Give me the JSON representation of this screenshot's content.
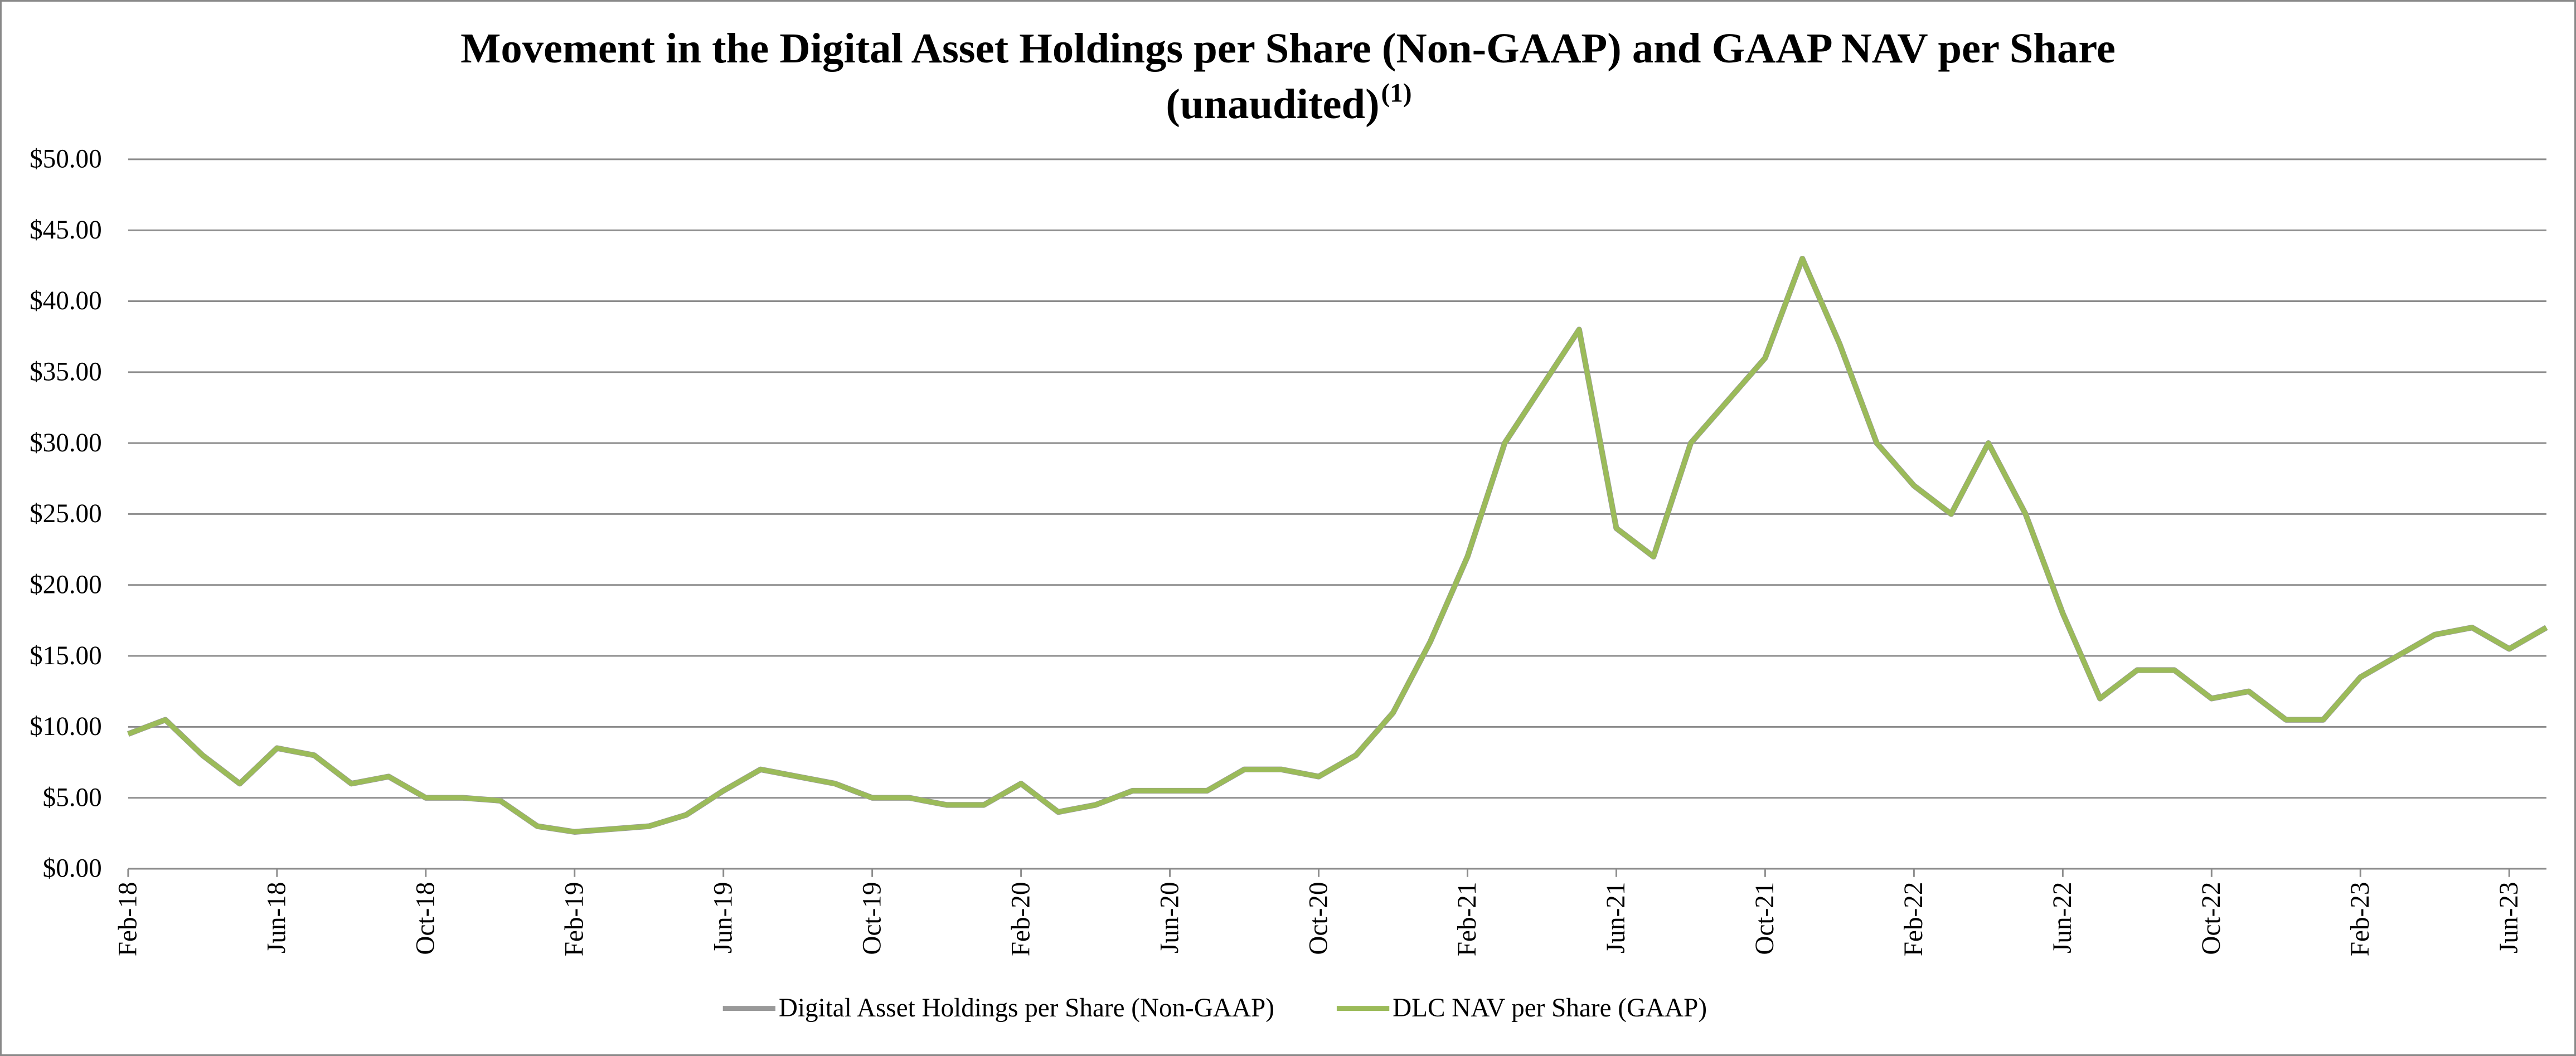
{
  "chart_data": {
    "type": "line",
    "title": [
      "Movement in the Digital Asset Holdings per Share (Non-GAAP) and GAAP NAV per Share",
      "(unaudited)"
    ],
    "title_note": "(1)",
    "categories": [
      "Feb-18",
      null,
      null,
      null,
      "Jun-18",
      null,
      null,
      null,
      "Oct-18",
      null,
      null,
      null,
      "Feb-19",
      null,
      null,
      null,
      "Jun-19",
      null,
      null,
      null,
      "Oct-19",
      null,
      null,
      null,
      "Feb-20",
      null,
      null,
      null,
      "Jun-20",
      null,
      null,
      null,
      "Oct-20",
      null,
      null,
      null,
      "Feb-21",
      null,
      null,
      null,
      "Jun-21",
      null,
      null,
      null,
      "Oct-21",
      null,
      null,
      null,
      "Feb-22",
      null,
      null,
      null,
      "Jun-22",
      null,
      null,
      null,
      "Oct-22",
      null,
      null,
      null,
      "Feb-23",
      null,
      null,
      null,
      "Jun-23",
      null
    ],
    "series": [
      {
        "name": "Digital Asset Holdings per Share (Non-GAAP)",
        "color": "#999999",
        "values": [
          9.5,
          10.5,
          8,
          6,
          8.5,
          8,
          6,
          6.5,
          5,
          5,
          4.8,
          3,
          2.6,
          2.8,
          3,
          3.8,
          5.5,
          7,
          6.5,
          6,
          5,
          5,
          4.5,
          4.5,
          6,
          4,
          4.5,
          5.5,
          5.5,
          5.5,
          7,
          7,
          6.5,
          8,
          11,
          16,
          22,
          30,
          34,
          38,
          24,
          22,
          30,
          33,
          36,
          43,
          37,
          30,
          27,
          25,
          30,
          25,
          18,
          12,
          14,
          14,
          12,
          12.5,
          10.5,
          10.5,
          13.5,
          15,
          16.5,
          17,
          15.5,
          17
        ]
      },
      {
        "name": "DLC NAV per Share (GAAP)",
        "color": "#9bbb59",
        "values": [
          9.5,
          10.5,
          8,
          6,
          8.5,
          8,
          6,
          6.5,
          5,
          5,
          4.8,
          3,
          2.6,
          2.8,
          3,
          3.8,
          5.5,
          7,
          6.5,
          6,
          5,
          5,
          4.5,
          4.5,
          6,
          4,
          4.5,
          5.5,
          5.5,
          5.5,
          7,
          7,
          6.5,
          8,
          11,
          16,
          22,
          30,
          34,
          38,
          24,
          22,
          30,
          33,
          36,
          43,
          37,
          30,
          27,
          25,
          30,
          25,
          18,
          12,
          14,
          14,
          12,
          12.5,
          10.5,
          10.5,
          13.5,
          15,
          16.5,
          17,
          15.5,
          17
        ]
      }
    ],
    "ylim": [
      0,
      50
    ],
    "yticks": [
      {
        "value": 0,
        "label": "$0.00"
      },
      {
        "value": 5,
        "label": "$5.00"
      },
      {
        "value": 10,
        "label": "$10.00"
      },
      {
        "value": 15,
        "label": "$15.00"
      },
      {
        "value": 20,
        "label": "$20.00"
      },
      {
        "value": 25,
        "label": "$25.00"
      },
      {
        "value": 30,
        "label": "$30.00"
      },
      {
        "value": 35,
        "label": "$35.00"
      },
      {
        "value": 40,
        "label": "$40.00"
      },
      {
        "value": 45,
        "label": "$45.00"
      },
      {
        "value": 50,
        "label": "$50.00"
      }
    ],
    "grid": true,
    "legend": "bottom"
  }
}
